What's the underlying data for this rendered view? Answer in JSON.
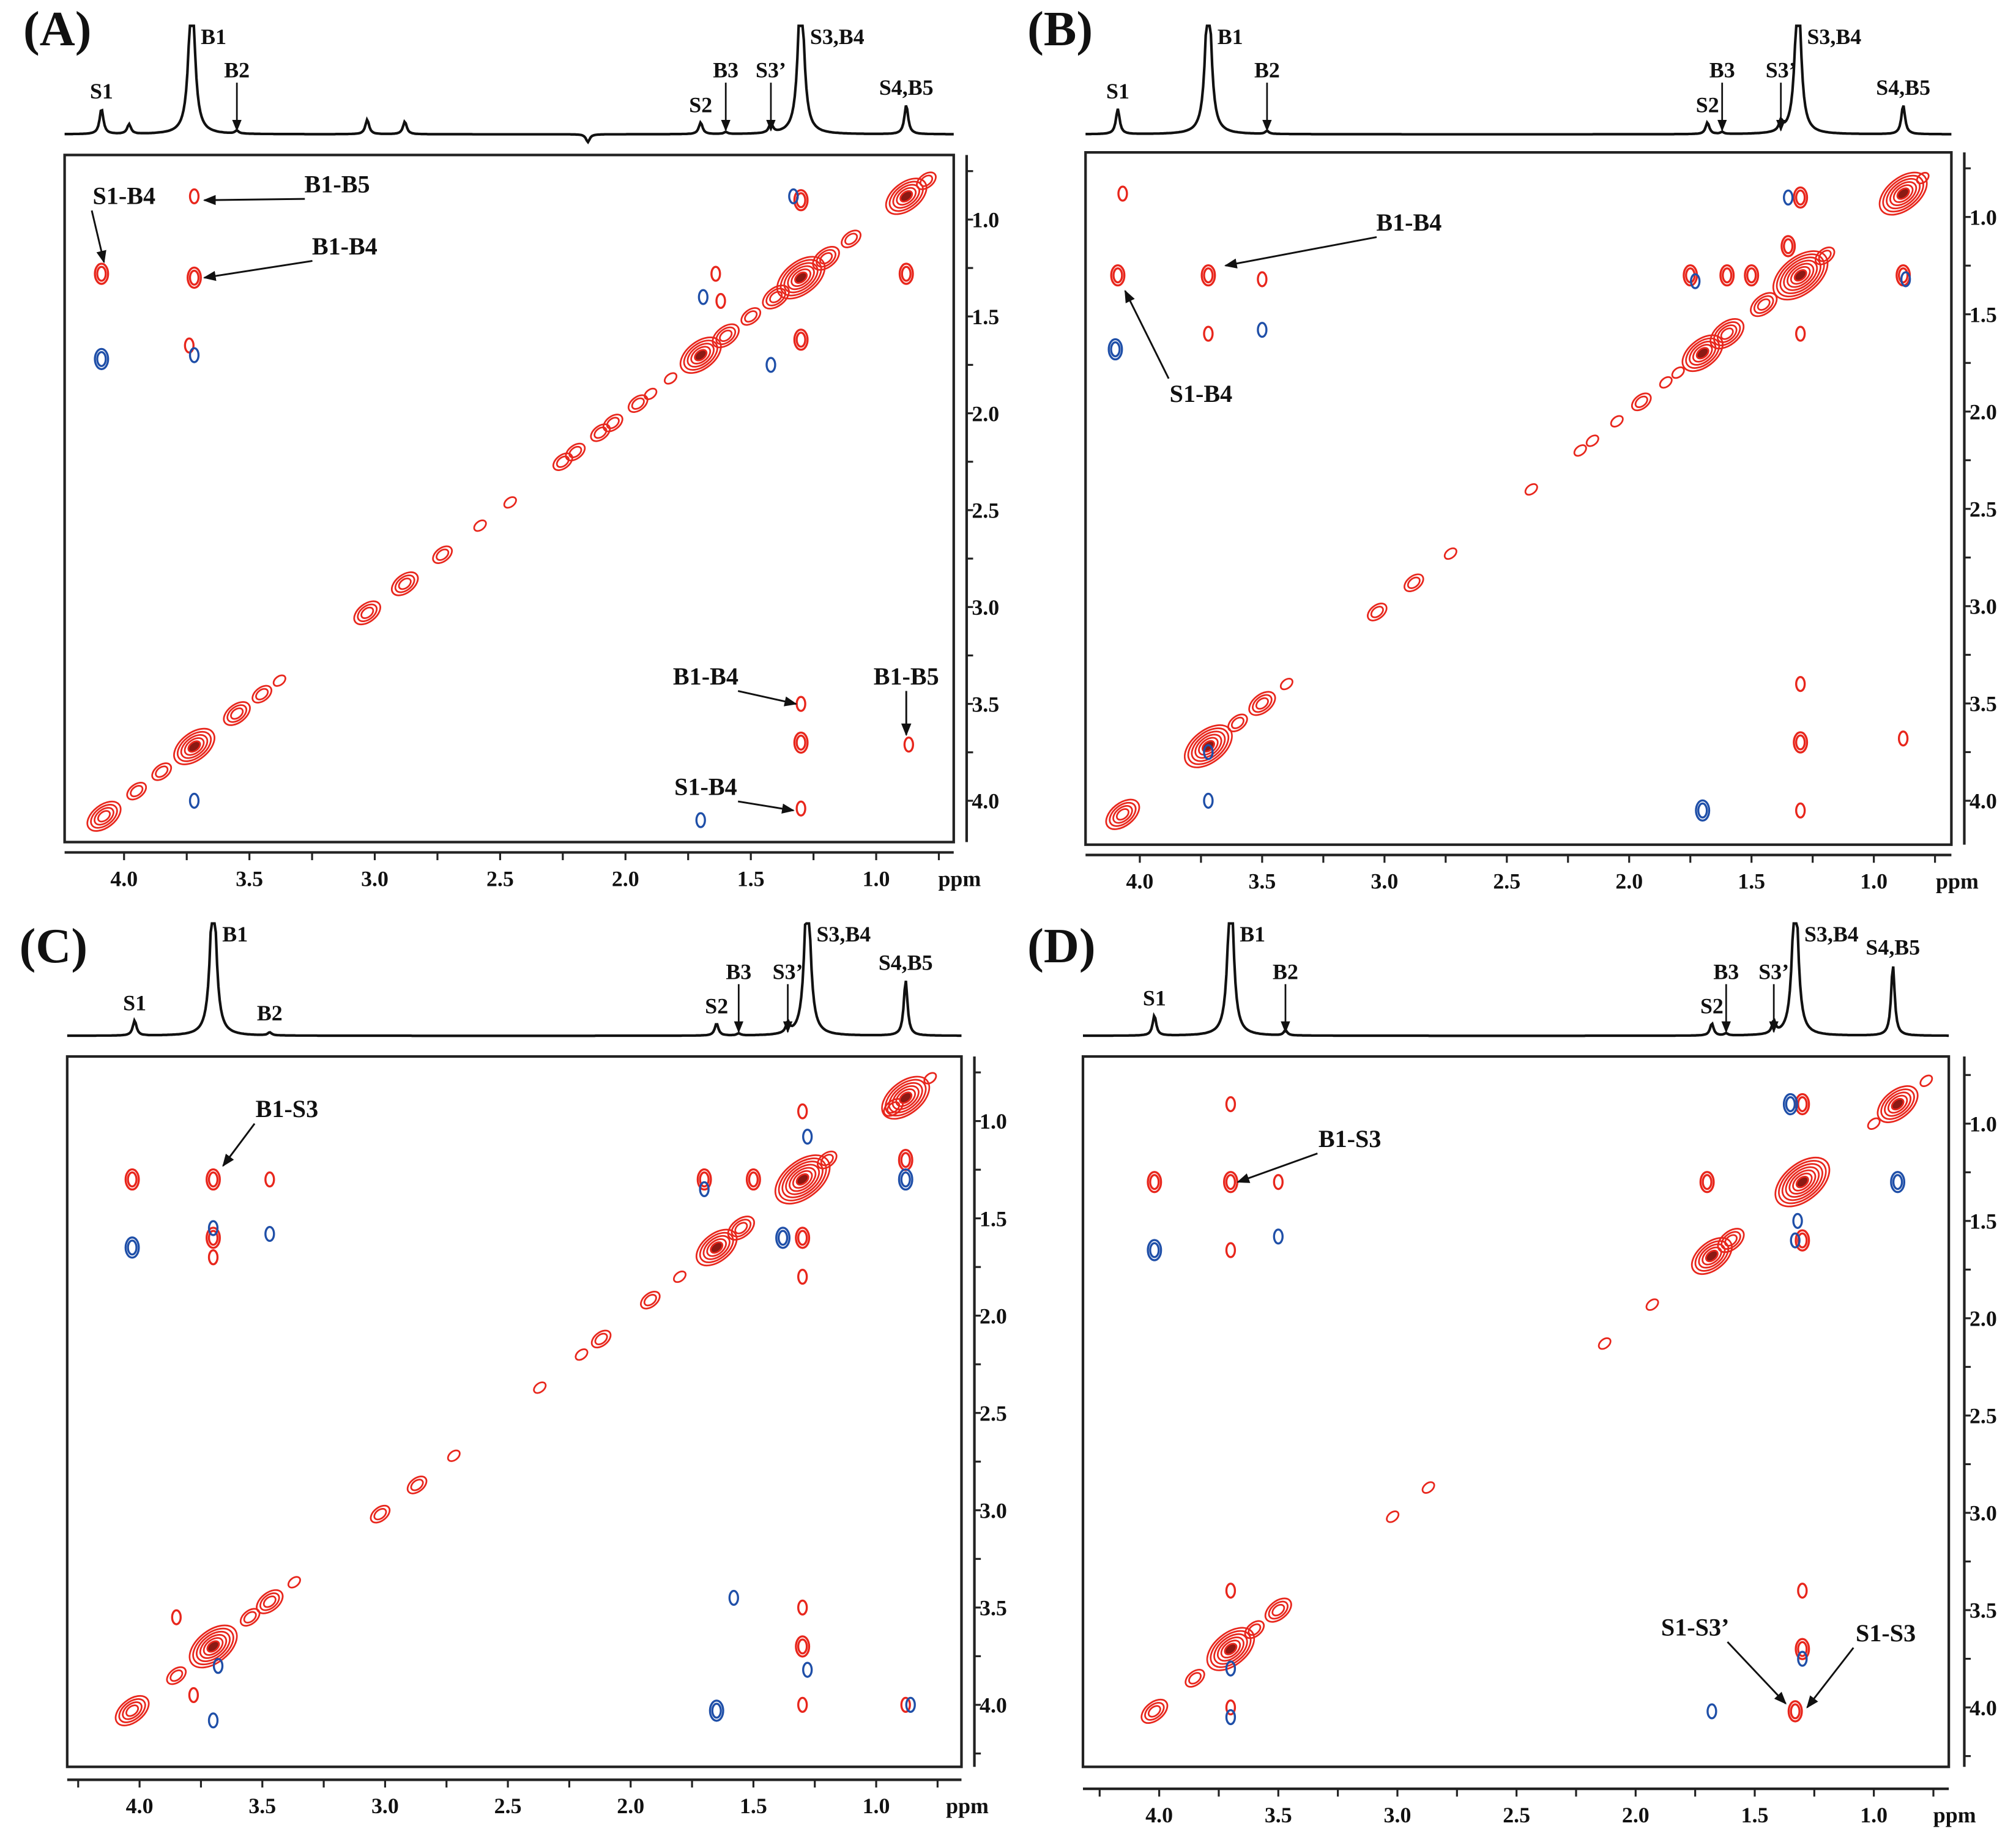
{
  "colors": {
    "positive": "#e8261c",
    "negative": "#1f4fa8",
    "axis": "#111111"
  },
  "chart_data": [
    {
      "type": "contour",
      "panel": "(A)",
      "x_ticks": [
        "4.0",
        "3.5",
        "3.0",
        "2.5",
        "2.0",
        "1.5",
        "1.0"
      ],
      "x_unit": "ppm",
      "y_ticks": [
        "1.0",
        "1.5",
        "2.0",
        "2.5",
        "3.0",
        "3.5",
        "4.0"
      ],
      "spectrum_peaks": [
        {
          "label": "S1",
          "ppm": 4.09,
          "height": 0.26,
          "arrow": false
        },
        {
          "label": "",
          "ppm": 3.98,
          "height": 0.1,
          "arrow": false
        },
        {
          "label": "B1",
          "ppm": 3.73,
          "height": 1.6,
          "arrow": false
        },
        {
          "label": "B2",
          "ppm": 3.55,
          "height": 0.03,
          "arrow": true
        },
        {
          "label": "",
          "ppm": 3.03,
          "height": 0.15,
          "arrow": false
        },
        {
          "label": "",
          "ppm": 2.88,
          "height": 0.13,
          "arrow": false
        },
        {
          "label": "",
          "ppm": 2.15,
          "height": -0.08,
          "arrow": false
        },
        {
          "label": "S2",
          "ppm": 1.7,
          "height": 0.12,
          "arrow": false
        },
        {
          "label": "B3",
          "ppm": 1.6,
          "height": 0.02,
          "arrow": true
        },
        {
          "label": "S3’",
          "ppm": 1.42,
          "height": 0.1,
          "arrow": true
        },
        {
          "label": "S3,B4",
          "ppm": 1.3,
          "height": 1.6,
          "arrow": false
        },
        {
          "label": "S4,B5",
          "ppm": 0.88,
          "height": 0.3,
          "arrow": false
        }
      ],
      "diagonal": [
        [
          4.08,
          4
        ],
        [
          3.95,
          2
        ],
        [
          3.85,
          2
        ],
        [
          3.72,
          5
        ],
        [
          3.55,
          3
        ],
        [
          3.45,
          2
        ],
        [
          3.38,
          1
        ],
        [
          3.03,
          3
        ],
        [
          2.88,
          3
        ],
        [
          2.73,
          2
        ],
        [
          2.58,
          1
        ],
        [
          2.46,
          1
        ],
        [
          2.25,
          2
        ],
        [
          2.2,
          2
        ],
        [
          2.1,
          2
        ],
        [
          2.05,
          2
        ],
        [
          1.95,
          2
        ],
        [
          1.9,
          1
        ],
        [
          1.82,
          1
        ],
        [
          1.7,
          5
        ],
        [
          1.6,
          3
        ],
        [
          1.5,
          2
        ],
        [
          1.4,
          3
        ],
        [
          1.3,
          6
        ],
        [
          1.2,
          3
        ],
        [
          1.1,
          2
        ],
        [
          0.88,
          5
        ],
        [
          0.8,
          2
        ]
      ],
      "positive_cross": [
        [
          3.72,
          0.88,
          1
        ],
        [
          3.72,
          1.3,
          2
        ],
        [
          4.09,
          1.28,
          2
        ],
        [
          3.74,
          1.65,
          1
        ],
        [
          1.3,
          0.9,
          2
        ],
        [
          1.3,
          1.62,
          2
        ],
        [
          1.64,
          1.28,
          1
        ],
        [
          1.62,
          1.42,
          1
        ],
        [
          1.3,
          3.5,
          1
        ],
        [
          1.3,
          3.7,
          2
        ],
        [
          0.87,
          3.71,
          1
        ],
        [
          1.3,
          4.04,
          1
        ],
        [
          0.88,
          1.28,
          2
        ]
      ],
      "negative_cross": [
        [
          4.09,
          1.72,
          2
        ],
        [
          3.72,
          1.7,
          1
        ],
        [
          3.72,
          4.0,
          1
        ],
        [
          1.33,
          0.88,
          1
        ],
        [
          1.69,
          1.4,
          1
        ],
        [
          1.42,
          1.75,
          1
        ],
        [
          1.7,
          4.1,
          1
        ]
      ],
      "annotations": [
        {
          "text": "B1-B5",
          "tx": 3.15,
          "ty": 0.86,
          "ax": 3.68,
          "ay": 0.9
        },
        {
          "text": "S1-B4",
          "tx": 4.0,
          "ty": 0.92,
          "ax": 4.08,
          "ay": 1.22
        },
        {
          "text": "B1-B4",
          "tx": 3.12,
          "ty": 1.18,
          "ax": 3.68,
          "ay": 1.3
        },
        {
          "text": "B1-B4",
          "tx": 1.68,
          "ty": 3.4,
          "ax": 1.32,
          "ay": 3.5
        },
        {
          "text": "B1-B5",
          "tx": 0.88,
          "ty": 3.4,
          "ax": 0.88,
          "ay": 3.66
        },
        {
          "text": "S1-B4",
          "tx": 1.68,
          "ty": 3.97,
          "ax": 1.33,
          "ay": 4.05
        }
      ]
    },
    {
      "type": "contour",
      "panel": "(B)",
      "x_ticks": [
        "4.0",
        "3.5",
        "3.0",
        "2.5",
        "2.0",
        "1.5",
        "1.0"
      ],
      "x_unit": "ppm",
      "y_ticks": [
        "1.0",
        "1.5",
        "2.0",
        "2.5",
        "3.0",
        "3.5",
        "4.0"
      ],
      "spectrum_peaks": [
        {
          "label": "S1",
          "ppm": 4.09,
          "height": 0.26,
          "arrow": false
        },
        {
          "label": "B1",
          "ppm": 3.72,
          "height": 1.6,
          "arrow": false
        },
        {
          "label": "B2",
          "ppm": 3.48,
          "height": 0.03,
          "arrow": true
        },
        {
          "label": "S2",
          "ppm": 1.68,
          "height": 0.12,
          "arrow": false
        },
        {
          "label": "B3",
          "ppm": 1.62,
          "height": 0.02,
          "arrow": true
        },
        {
          "label": "S3’",
          "ppm": 1.38,
          "height": 0.1,
          "arrow": true
        },
        {
          "label": "S3,B4",
          "ppm": 1.31,
          "height": 1.6,
          "arrow": false
        },
        {
          "label": "S4,B5",
          "ppm": 0.88,
          "height": 0.3,
          "arrow": false
        }
      ],
      "diagonal": [
        [
          4.07,
          4
        ],
        [
          3.72,
          6
        ],
        [
          3.6,
          2
        ],
        [
          3.5,
          3
        ],
        [
          3.4,
          1
        ],
        [
          3.03,
          2
        ],
        [
          2.88,
          2
        ],
        [
          2.73,
          1
        ],
        [
          2.4,
          1
        ],
        [
          2.2,
          1
        ],
        [
          2.15,
          1
        ],
        [
          2.05,
          1
        ],
        [
          1.95,
          2
        ],
        [
          1.85,
          1
        ],
        [
          1.8,
          1
        ],
        [
          1.7,
          5
        ],
        [
          1.6,
          4
        ],
        [
          1.45,
          3
        ],
        [
          1.3,
          7
        ],
        [
          1.2,
          2
        ],
        [
          0.88,
          6
        ],
        [
          0.8,
          1
        ]
      ],
      "positive_cross": [
        [
          4.09,
          1.3,
          2
        ],
        [
          3.72,
          1.3,
          2
        ],
        [
          3.5,
          1.32,
          1
        ],
        [
          3.72,
          1.6,
          1
        ],
        [
          4.07,
          0.88,
          1
        ],
        [
          1.3,
          0.9,
          2
        ],
        [
          1.35,
          1.15,
          2
        ],
        [
          1.3,
          3.4,
          1
        ],
        [
          1.3,
          3.7,
          2
        ],
        [
          1.3,
          4.05,
          1
        ],
        [
          0.88,
          1.3,
          2
        ],
        [
          0.88,
          3.68,
          1
        ],
        [
          1.75,
          1.3,
          2
        ],
        [
          1.6,
          1.3,
          2
        ],
        [
          1.3,
          1.6,
          1
        ],
        [
          1.5,
          1.3,
          2
        ]
      ],
      "negative_cross": [
        [
          4.1,
          1.68,
          2
        ],
        [
          3.5,
          1.58,
          1
        ],
        [
          3.72,
          3.75,
          1
        ],
        [
          3.72,
          4.0,
          1
        ],
        [
          1.7,
          4.05,
          2
        ],
        [
          1.35,
          0.9,
          1
        ],
        [
          0.87,
          1.32,
          1
        ],
        [
          1.73,
          1.33,
          1
        ]
      ],
      "annotations": [
        {
          "text": "B1-B4",
          "tx": 2.9,
          "ty": 1.07,
          "ax": 3.65,
          "ay": 1.25
        },
        {
          "text": "S1-B4",
          "tx": 3.75,
          "ty": 1.95,
          "ax": 4.06,
          "ay": 1.38
        }
      ]
    },
    {
      "type": "contour",
      "panel": "(C)",
      "x_ticks": [
        "4.0",
        "3.5",
        "3.0",
        "2.5",
        "2.0",
        "1.5",
        "1.0"
      ],
      "x_unit": "ppm",
      "y_ticks": [
        "1.0",
        "1.5",
        "2.0",
        "2.5",
        "3.0",
        "3.5",
        "4.0"
      ],
      "spectrum_peaks": [
        {
          "label": "S1",
          "ppm": 4.02,
          "height": 0.15,
          "arrow": false
        },
        {
          "label": "B1",
          "ppm": 3.7,
          "height": 1.6,
          "arrow": false
        },
        {
          "label": "B2",
          "ppm": 3.47,
          "height": 0.03,
          "arrow": false
        },
        {
          "label": "S2",
          "ppm": 1.65,
          "height": 0.12,
          "arrow": false
        },
        {
          "label": "B3",
          "ppm": 1.56,
          "height": 0.02,
          "arrow": true
        },
        {
          "label": "S3’",
          "ppm": 1.36,
          "height": 0.1,
          "arrow": true
        },
        {
          "label": "S3,B4",
          "ppm": 1.28,
          "height": 1.6,
          "arrow": false
        },
        {
          "label": "S4,B5",
          "ppm": 0.88,
          "height": 0.55,
          "arrow": false
        }
      ],
      "diagonal": [
        [
          4.03,
          4
        ],
        [
          3.85,
          2
        ],
        [
          3.7,
          6
        ],
        [
          3.55,
          2
        ],
        [
          3.47,
          3
        ],
        [
          3.37,
          1
        ],
        [
          3.02,
          2
        ],
        [
          2.87,
          2
        ],
        [
          2.72,
          1
        ],
        [
          2.37,
          1
        ],
        [
          2.2,
          1
        ],
        [
          2.12,
          2
        ],
        [
          1.92,
          2
        ],
        [
          1.8,
          1
        ],
        [
          1.65,
          5
        ],
        [
          1.55,
          3
        ],
        [
          1.3,
          7
        ],
        [
          1.2,
          2
        ],
        [
          0.93,
          2
        ],
        [
          0.88,
          6
        ],
        [
          0.78,
          1
        ]
      ],
      "positive_cross": [
        [
          4.03,
          1.3,
          2
        ],
        [
          3.7,
          1.3,
          2
        ],
        [
          3.47,
          1.3,
          1
        ],
        [
          3.7,
          1.6,
          2
        ],
        [
          3.7,
          1.7,
          1
        ],
        [
          3.85,
          3.55,
          1
        ],
        [
          3.78,
          3.95,
          1
        ],
        [
          1.3,
          0.95,
          1
        ],
        [
          1.3,
          1.6,
          2
        ],
        [
          1.3,
          1.8,
          1
        ],
        [
          1.3,
          3.5,
          1
        ],
        [
          1.3,
          3.7,
          2
        ],
        [
          1.3,
          4.0,
          1
        ],
        [
          0.88,
          1.2,
          2
        ],
        [
          0.88,
          4.0,
          1
        ],
        [
          1.7,
          1.3,
          2
        ],
        [
          1.5,
          1.3,
          2
        ]
      ],
      "negative_cross": [
        [
          4.03,
          1.65,
          2
        ],
        [
          3.7,
          1.55,
          1
        ],
        [
          3.47,
          1.58,
          1
        ],
        [
          3.7,
          4.08,
          1
        ],
        [
          3.68,
          3.8,
          1
        ],
        [
          1.65,
          4.03,
          2
        ],
        [
          1.58,
          3.45,
          1
        ],
        [
          1.38,
          1.6,
          2
        ],
        [
          1.28,
          1.08,
          1
        ],
        [
          0.88,
          1.3,
          2
        ],
        [
          1.7,
          1.35,
          1
        ],
        [
          1.28,
          3.82,
          1
        ],
        [
          0.86,
          4.0,
          1
        ]
      ],
      "annotations": [
        {
          "text": "B1-S3",
          "tx": 3.4,
          "ty": 0.98,
          "ax": 3.66,
          "ay": 1.23
        }
      ]
    },
    {
      "type": "contour",
      "panel": "(D)",
      "x_ticks": [
        "4.0",
        "3.5",
        "3.0",
        "2.5",
        "2.0",
        "1.5",
        "1.0"
      ],
      "x_unit": "ppm",
      "y_ticks": [
        "1.0",
        "1.5",
        "2.0",
        "2.5",
        "3.0",
        "3.5",
        "4.0"
      ],
      "spectrum_peaks": [
        {
          "label": "S1",
          "ppm": 4.02,
          "height": 0.2,
          "arrow": false
        },
        {
          "label": "B1",
          "ppm": 3.7,
          "height": 1.6,
          "arrow": false
        },
        {
          "label": "B2",
          "ppm": 3.47,
          "height": 0.05,
          "arrow": true
        },
        {
          "label": "S2",
          "ppm": 1.68,
          "height": 0.12,
          "arrow": false
        },
        {
          "label": "B3",
          "ppm": 1.62,
          "height": 0.02,
          "arrow": true
        },
        {
          "label": "S3’",
          "ppm": 1.42,
          "height": 0.12,
          "arrow": true
        },
        {
          "label": "S3,B4",
          "ppm": 1.33,
          "height": 1.6,
          "arrow": false
        },
        {
          "label": "S4,B5",
          "ppm": 0.92,
          "height": 0.7,
          "arrow": false
        }
      ],
      "diagonal": [
        [
          4.02,
          3
        ],
        [
          3.85,
          2
        ],
        [
          3.7,
          6
        ],
        [
          3.6,
          2
        ],
        [
          3.5,
          3
        ],
        [
          3.02,
          1
        ],
        [
          2.87,
          1
        ],
        [
          2.13,
          1
        ],
        [
          1.93,
          1
        ],
        [
          1.68,
          5
        ],
        [
          1.6,
          3
        ],
        [
          1.3,
          7
        ],
        [
          1.0,
          1
        ],
        [
          0.9,
          5
        ],
        [
          0.78,
          1
        ]
      ],
      "positive_cross": [
        [
          3.7,
          0.9,
          1
        ],
        [
          4.02,
          1.3,
          2
        ],
        [
          3.7,
          1.3,
          2
        ],
        [
          3.5,
          1.3,
          1
        ],
        [
          3.7,
          1.65,
          1
        ],
        [
          1.3,
          0.9,
          2
        ],
        [
          1.3,
          1.6,
          2
        ],
        [
          1.3,
          3.4,
          1
        ],
        [
          1.3,
          3.7,
          2
        ],
        [
          1.33,
          4.02,
          2
        ],
        [
          1.7,
          1.3,
          2
        ],
        [
          3.7,
          3.4,
          1
        ],
        [
          3.7,
          4.0,
          1
        ]
      ],
      "negative_cross": [
        [
          4.02,
          1.65,
          2
        ],
        [
          3.5,
          1.58,
          1
        ],
        [
          3.7,
          3.8,
          1
        ],
        [
          3.7,
          4.05,
          1
        ],
        [
          1.68,
          4.02,
          1
        ],
        [
          1.35,
          0.9,
          2
        ],
        [
          1.33,
          1.6,
          1
        ],
        [
          0.9,
          1.3,
          2
        ],
        [
          1.3,
          3.75,
          1
        ],
        [
          1.32,
          1.5,
          1
        ]
      ],
      "annotations": [
        {
          "text": "B1-S3",
          "tx": 3.2,
          "ty": 1.12,
          "ax": 3.67,
          "ay": 1.3
        },
        {
          "text": "S1-S3’",
          "tx": 1.75,
          "ty": 3.63,
          "ax": 1.37,
          "ay": 3.98
        },
        {
          "text": "S1-S3",
          "tx": 0.95,
          "ty": 3.66,
          "ax": 1.28,
          "ay": 4.0
        }
      ]
    }
  ]
}
